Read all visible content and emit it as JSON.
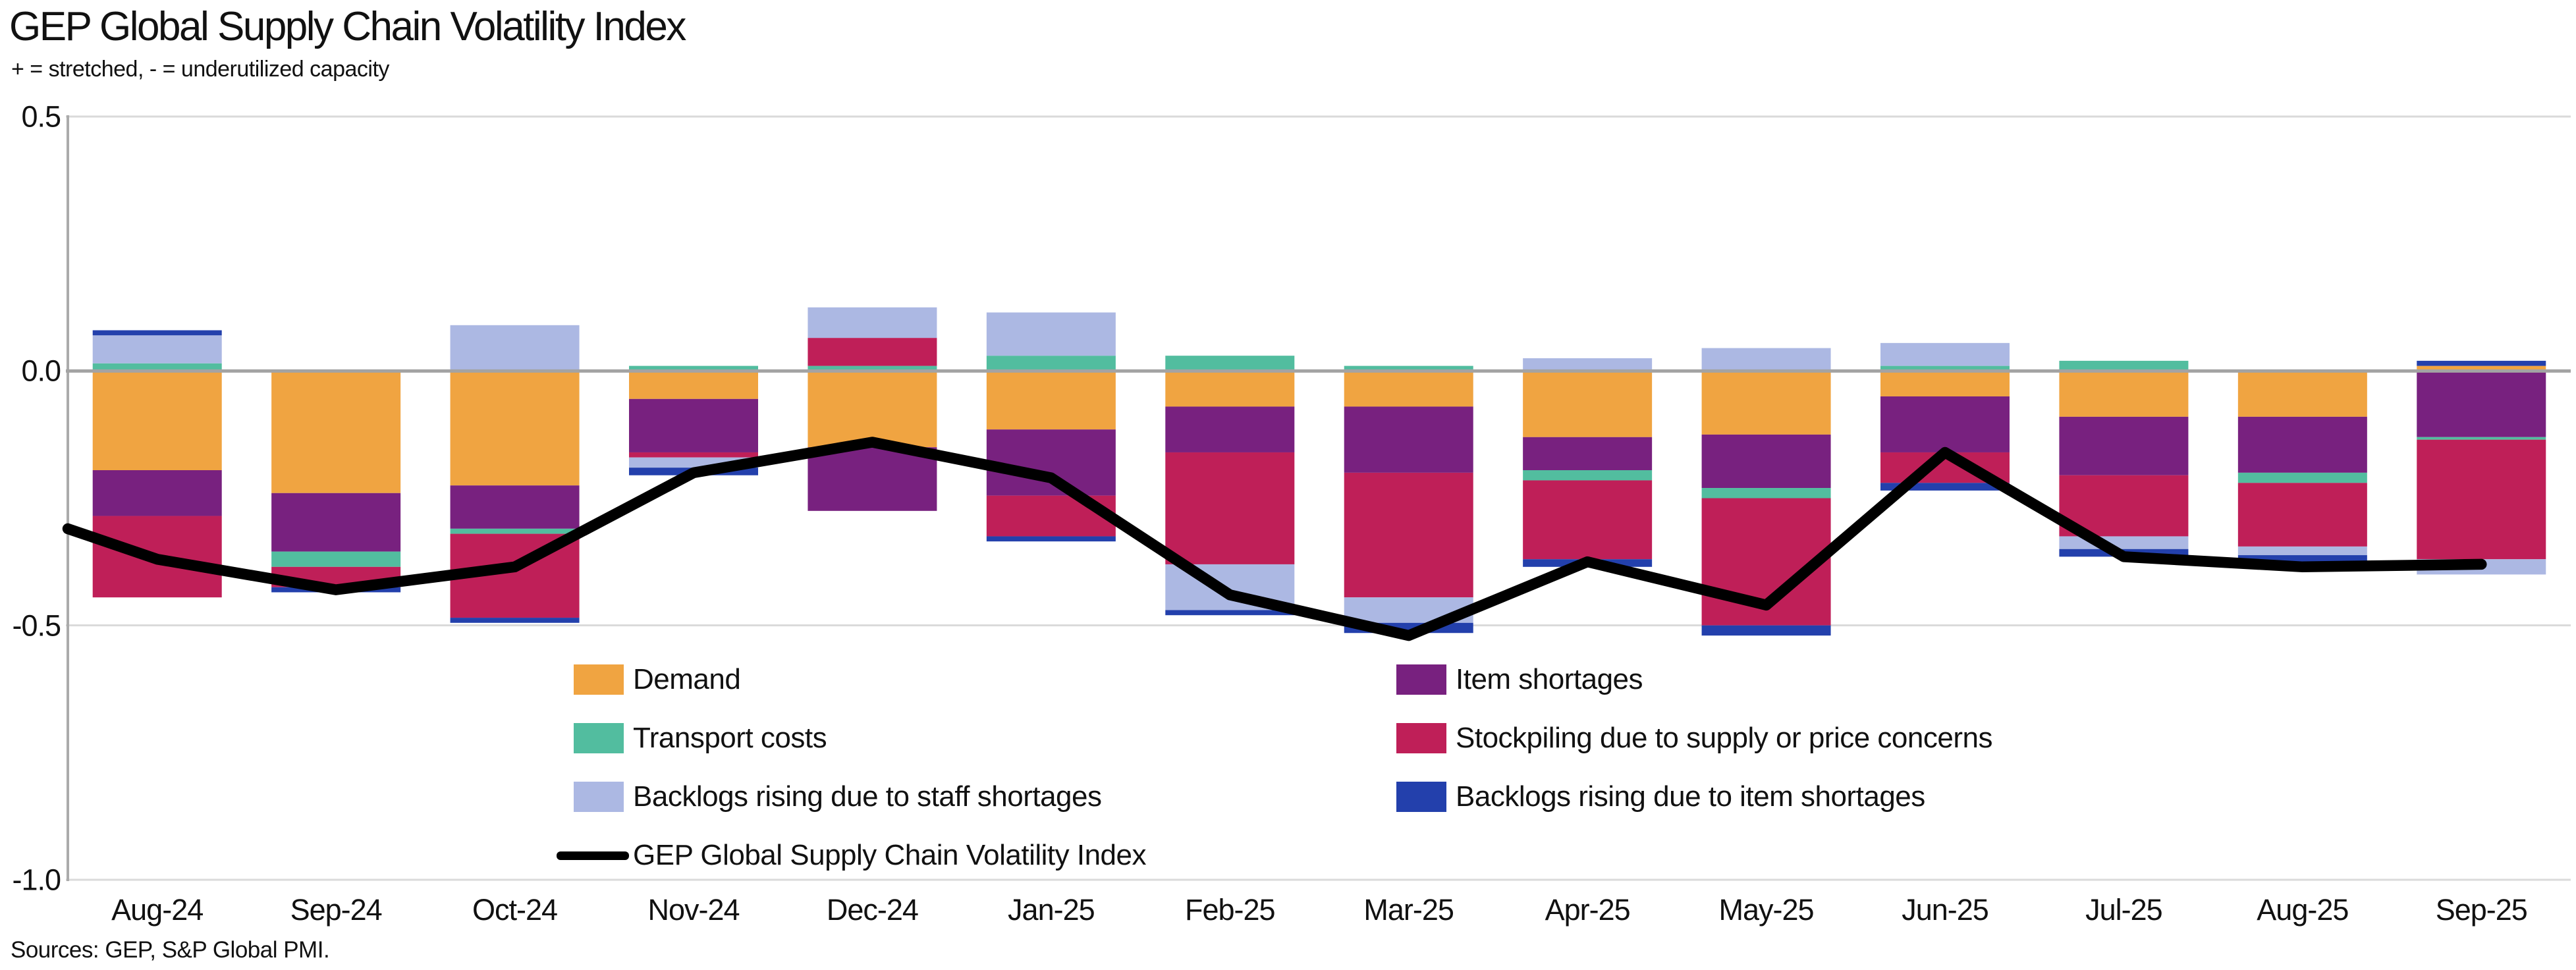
{
  "header": {
    "title": "GEP Global Supply Chain Volatility Index",
    "subtitle": "+ = stretched, - = underutilized capacity"
  },
  "footer": {
    "sources": "Sources: GEP, S&P Global PMI."
  },
  "y_axis": {
    "ticks": [
      {
        "label": "0.5",
        "value": 0.5
      },
      {
        "label": "0.0",
        "value": 0.0
      },
      {
        "label": "-0.5",
        "value": -0.5
      },
      {
        "label": "-1.0",
        "value": -1.0
      }
    ]
  },
  "legend": {
    "left_column": [
      {
        "label": "Demand",
        "color": "#F0A441",
        "type": "swatch",
        "name": "demand"
      },
      {
        "label": "Transport costs",
        "color": "#52BD9F",
        "type": "swatch",
        "name": "transport-costs"
      },
      {
        "label": "Backlogs rising due to staff shortages",
        "color": "#ACB8E3",
        "type": "swatch",
        "name": "backlogs-staff-shortages"
      },
      {
        "label": "GEP Global Supply Chain Volatility Index",
        "color": "#000000",
        "type": "line",
        "name": "gep-index-line"
      }
    ],
    "right_column": [
      {
        "label": "Item shortages",
        "color": "#78217F",
        "type": "swatch",
        "name": "item-shortages"
      },
      {
        "label": "Stockpiling due to supply or price concerns",
        "color": "#BF1F58",
        "type": "swatch",
        "name": "stockpiling"
      },
      {
        "label": "Backlogs rising due to item shortages",
        "color": "#2340AC",
        "type": "swatch",
        "name": "backlogs-item-shortages"
      }
    ]
  },
  "chart_data": {
    "type": "bar",
    "subtype": "stacked-bar-with-line-overlay",
    "title": "GEP Global Supply Chain Volatility Index",
    "xlabel": "",
    "ylabel": "",
    "ylim": [
      -1.0,
      0.5
    ],
    "grid": "horizontal",
    "legend_position": "bottom-inside",
    "categories": [
      "Aug-24",
      "Sep-24",
      "Oct-24",
      "Nov-24",
      "Dec-24",
      "Jan-25",
      "Feb-25",
      "Mar-25",
      "Apr-25",
      "May-25",
      "Jun-25",
      "Jul-25",
      "Aug-25",
      "Sep-25"
    ],
    "series": [
      {
        "name": "Demand",
        "color": "#F0A441",
        "values": [
          -0.195,
          -0.24,
          -0.225,
          -0.055,
          -0.15,
          -0.115,
          -0.07,
          -0.07,
          -0.13,
          -0.125,
          -0.05,
          -0.09,
          -0.09,
          0.01
        ]
      },
      {
        "name": "Item shortages",
        "color": "#78217F",
        "values": [
          -0.09,
          -0.115,
          -0.085,
          -0.105,
          -0.125,
          -0.13,
          -0.09,
          -0.13,
          -0.065,
          -0.105,
          -0.11,
          -0.115,
          -0.11,
          -0.13
        ]
      },
      {
        "name": "Transport costs",
        "color": "#52BD9F",
        "values": [
          0.015,
          -0.03,
          -0.01,
          0.01,
          0.01,
          0.03,
          0.03,
          0.01,
          -0.02,
          -0.02,
          0.01,
          0.02,
          -0.02,
          -0.005
        ]
      },
      {
        "name": "Stockpiling due to supply or price concerns",
        "color": "#BF1F58",
        "values": [
          -0.16,
          -0.04,
          -0.165,
          -0.01,
          0.055,
          -0.08,
          -0.22,
          -0.245,
          -0.155,
          -0.25,
          -0.06,
          -0.12,
          -0.125,
          -0.235
        ]
      },
      {
        "name": "Backlogs rising due to staff shortages",
        "color": "#ACB8E3",
        "values": [
          0.055,
          0,
          0.09,
          -0.02,
          0.06,
          0.085,
          -0.09,
          -0.05,
          0.025,
          0.045,
          0.045,
          -0.025,
          -0.017,
          -0.03
        ]
      },
      {
        "name": "Backlogs rising due to item shortages",
        "color": "#2340AC",
        "values": [
          0.01,
          -0.01,
          -0.01,
          -0.015,
          0,
          -0.01,
          -0.01,
          -0.02,
          -0.015,
          -0.02,
          -0.015,
          -0.015,
          -0.016,
          0.01
        ]
      }
    ],
    "line_series": {
      "name": "GEP Global Supply Chain Volatility Index",
      "color": "#000000",
      "edge_start": -0.31,
      "values": [
        -0.37,
        -0.43,
        -0.385,
        -0.2,
        -0.14,
        -0.21,
        -0.44,
        -0.52,
        -0.375,
        -0.46,
        -0.16,
        -0.365,
        -0.385,
        -0.38
      ]
    }
  }
}
